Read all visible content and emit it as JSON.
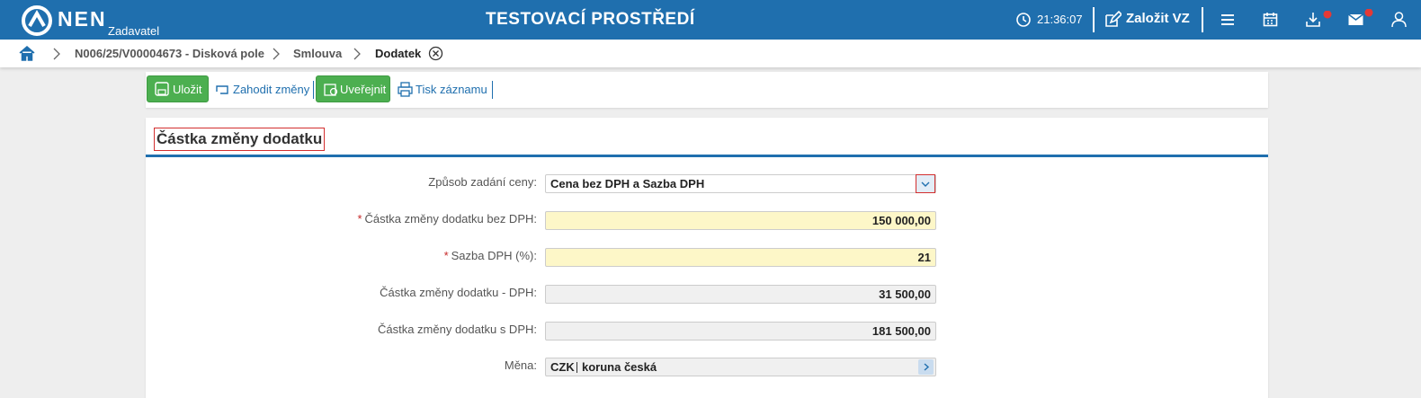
{
  "header": {
    "logo": "NEN",
    "role": "Zadavatel",
    "title": "TESTOVACÍ PROSTŘEDÍ",
    "time": "21:36:07",
    "create_button": "Založit VZ"
  },
  "breadcrumb": [
    "N006/25/V00004673 - Disková pole",
    "Smlouva",
    "Dodatek"
  ],
  "toolbar": {
    "save": "Uložit",
    "discard": "Zahodit změny",
    "publish": "Uveřejnit",
    "print": "Tisk záznamu"
  },
  "section": {
    "title": "Částka změny dodatku",
    "fields": [
      {
        "label": "Způsob zadání ceny:",
        "value": "Cena bez DPH a Sazba DPH"
      },
      {
        "label": "Částka změny dodatku bez DPH:",
        "value": "150 000,00",
        "required_mark": "*"
      },
      {
        "label": "Sazba DPH (%):",
        "value": "21",
        "required_mark": "*"
      },
      {
        "label": "Částka změny dodatku - DPH:",
        "value": "31 500,00"
      },
      {
        "label": "Částka změny dodatku s DPH:",
        "value": "181 500,00"
      },
      {
        "label": "Měna:",
        "value": "CZK",
        "value_detail": "koruna česká"
      }
    ]
  }
}
